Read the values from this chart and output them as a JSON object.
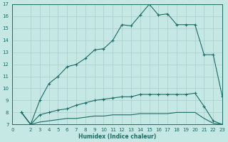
{
  "bg_color": "#c5e8e5",
  "grid_color": "#a8ceca",
  "line_color": "#1a6b65",
  "xlabel": "Humidex (Indice chaleur)",
  "xlim": [
    0,
    23
  ],
  "ylim": [
    7,
    17
  ],
  "xticks": [
    0,
    2,
    3,
    4,
    5,
    6,
    7,
    8,
    9,
    10,
    11,
    12,
    13,
    14,
    15,
    16,
    17,
    18,
    19,
    20,
    21,
    22,
    23
  ],
  "yticks": [
    7,
    8,
    9,
    10,
    11,
    12,
    13,
    14,
    15,
    16,
    17
  ],
  "line1_x": [
    1,
    2,
    3,
    4,
    5,
    6,
    7,
    8,
    9,
    10,
    11,
    12,
    13,
    14,
    15,
    16,
    17,
    18,
    19,
    20,
    21,
    22,
    23
  ],
  "line1_y": [
    8.0,
    7.0,
    9.0,
    10.4,
    11.0,
    11.8,
    12.0,
    12.5,
    13.2,
    13.3,
    14.0,
    15.3,
    15.2,
    16.1,
    17.0,
    16.1,
    16.2,
    15.3,
    15.3,
    15.3,
    12.8,
    12.8,
    9.3
  ],
  "line2_x": [
    1,
    2,
    3,
    4,
    5,
    6,
    7,
    8,
    9,
    10,
    11,
    12,
    13,
    14,
    15,
    16,
    17,
    18,
    19,
    20,
    21,
    22,
    23
  ],
  "line2_y": [
    8.0,
    7.0,
    7.8,
    8.0,
    8.2,
    8.3,
    8.6,
    8.8,
    9.0,
    9.1,
    9.2,
    9.3,
    9.3,
    9.5,
    9.5,
    9.5,
    9.5,
    9.5,
    9.5,
    9.6,
    8.5,
    7.3,
    7.0
  ],
  "line3_x": [
    1,
    2,
    3,
    4,
    5,
    6,
    7,
    8,
    9,
    10,
    11,
    12,
    13,
    14,
    15,
    16,
    17,
    18,
    19,
    20,
    21,
    22,
    23
  ],
  "line3_y": [
    8.0,
    7.0,
    7.2,
    7.3,
    7.4,
    7.5,
    7.5,
    7.6,
    7.7,
    7.7,
    7.8,
    7.8,
    7.8,
    7.9,
    7.9,
    7.9,
    7.9,
    8.0,
    8.0,
    8.0,
    7.5,
    7.1,
    7.0
  ]
}
